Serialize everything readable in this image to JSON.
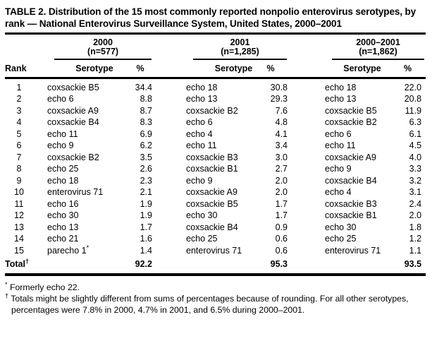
{
  "page": {
    "background": "#ffffff",
    "text_color": "#000000"
  },
  "table": {
    "title": "TABLE 2. Distribution of the 15 most commonly reported nonpolio enterovirus serotypes, by rank — National Enterovirus Surveillance System, United States, 2000–2001",
    "header": {
      "rank_label": "Rank",
      "groups": [
        {
          "period": "2000",
          "n": "(n=577)",
          "serotype_label": "Serotype",
          "pct_label": "%"
        },
        {
          "period": "2001",
          "n": "(n=1,285)",
          "serotype_label": "Serotype",
          "pct_label": "%"
        },
        {
          "period": "2000–2001",
          "n": "(n=1,862)",
          "serotype_label": "Serotype",
          "pct_label": "%"
        }
      ]
    },
    "rows": [
      {
        "rank": "1",
        "cells": [
          {
            "serotype": "coxsackie B5",
            "pct": "34.4"
          },
          {
            "serotype": "echo 18",
            "pct": "30.8"
          },
          {
            "serotype": "echo 18",
            "pct": "22.0"
          }
        ]
      },
      {
        "rank": "2",
        "cells": [
          {
            "serotype": "echo 6",
            "pct": "8.8"
          },
          {
            "serotype": "echo 13",
            "pct": "29.3"
          },
          {
            "serotype": "echo 13",
            "pct": "20.8"
          }
        ]
      },
      {
        "rank": "3",
        "cells": [
          {
            "serotype": "coxsackie A9",
            "pct": "8.7"
          },
          {
            "serotype": "coxsackie B2",
            "pct": "7.6"
          },
          {
            "serotype": "coxsackie B5",
            "pct": "11.9"
          }
        ]
      },
      {
        "rank": "4",
        "cells": [
          {
            "serotype": "coxsackie B4",
            "pct": "8.3"
          },
          {
            "serotype": "echo 6",
            "pct": "4.8"
          },
          {
            "serotype": "coxsackie B2",
            "pct": "6.3"
          }
        ]
      },
      {
        "rank": "5",
        "cells": [
          {
            "serotype": "echo 11",
            "pct": "6.9"
          },
          {
            "serotype": "echo 4",
            "pct": "4.1"
          },
          {
            "serotype": "echo 6",
            "pct": "6.1"
          }
        ]
      },
      {
        "rank": "6",
        "cells": [
          {
            "serotype": "echo 9",
            "pct": "6.2"
          },
          {
            "serotype": "echo 11",
            "pct": "3.4"
          },
          {
            "serotype": "echo 11",
            "pct": "4.5"
          }
        ]
      },
      {
        "rank": "7",
        "cells": [
          {
            "serotype": "coxsackie B2",
            "pct": "3.5"
          },
          {
            "serotype": "coxsackie B3",
            "pct": "3.0"
          },
          {
            "serotype": "coxsackie A9",
            "pct": "4.0"
          }
        ]
      },
      {
        "rank": "8",
        "cells": [
          {
            "serotype": "echo 25",
            "pct": "2.6"
          },
          {
            "serotype": "coxsackie B1",
            "pct": "2.7"
          },
          {
            "serotype": "echo 9",
            "pct": "3.3"
          }
        ]
      },
      {
        "rank": "9",
        "cells": [
          {
            "serotype": "echo 18",
            "pct": "2.3"
          },
          {
            "serotype": "echo 9",
            "pct": "2.0"
          },
          {
            "serotype": "coxsackie B4",
            "pct": "3.2"
          }
        ]
      },
      {
        "rank": "10",
        "cells": [
          {
            "serotype": "enterovirus 71",
            "pct": "2.1"
          },
          {
            "serotype": "coxsackie A9",
            "pct": "2.0"
          },
          {
            "serotype": "echo 4",
            "pct": "3.1"
          }
        ]
      },
      {
        "rank": "11",
        "cells": [
          {
            "serotype": "echo 16",
            "pct": "1.9"
          },
          {
            "serotype": "coxsackie B5",
            "pct": "1.7"
          },
          {
            "serotype": "coxsackie B3",
            "pct": "2.4"
          }
        ]
      },
      {
        "rank": "12",
        "cells": [
          {
            "serotype": "echo 30",
            "pct": "1.9"
          },
          {
            "serotype": "echo 30",
            "pct": "1.7"
          },
          {
            "serotype": "coxsackie B1",
            "pct": "2.0"
          }
        ]
      },
      {
        "rank": "13",
        "cells": [
          {
            "serotype": "echo 13",
            "pct": "1.7"
          },
          {
            "serotype": "coxsackie B4",
            "pct": "0.9"
          },
          {
            "serotype": "echo 30",
            "pct": "1.8"
          }
        ]
      },
      {
        "rank": "14",
        "cells": [
          {
            "serotype": "echo 21",
            "pct": "1.6"
          },
          {
            "serotype": "echo 25",
            "pct": "0.6"
          },
          {
            "serotype": "echo 25",
            "pct": "1.2"
          }
        ]
      },
      {
        "rank": "15",
        "cells": [
          {
            "serotype": "parecho 1",
            "marker": "*",
            "pct": "1.4"
          },
          {
            "serotype": "enterovirus 71",
            "pct": "0.6"
          },
          {
            "serotype": "enterovirus 71",
            "pct": "1.1"
          }
        ]
      }
    ],
    "total_row": {
      "label": "Total",
      "marker": "†",
      "values": [
        "92.2",
        "95.3",
        "93.5"
      ]
    },
    "footnotes": [
      {
        "marker": "*",
        "text": "Formerly echo 22."
      },
      {
        "marker": "†",
        "text": "Totals might be slightly different from sums of percentages because of rounding. For all other serotypes, percentages were 7.8% in 2000, 4.7% in 2001, and 6.5% during 2000–2001."
      }
    ]
  }
}
